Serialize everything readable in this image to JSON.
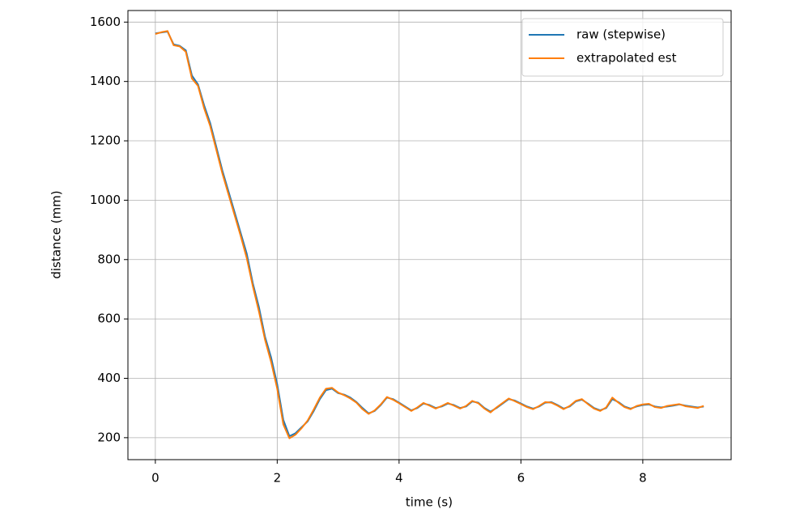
{
  "chart_data": {
    "type": "line",
    "xlabel": "time (s)",
    "ylabel": "distance (mm)",
    "x": [
      0,
      0.1,
      0.2,
      0.3,
      0.4,
      0.5,
      0.6,
      0.7,
      0.8,
      0.9,
      1.0,
      1.1,
      1.2,
      1.3,
      1.4,
      1.5,
      1.6,
      1.7,
      1.8,
      1.9,
      2.0,
      2.1,
      2.2,
      2.3,
      2.4,
      2.5,
      2.6,
      2.7,
      2.8,
      2.9,
      3.0,
      3.1,
      3.2,
      3.3,
      3.4,
      3.5,
      3.6,
      3.7,
      3.8,
      3.9,
      4.0,
      4.1,
      4.2,
      4.3,
      4.4,
      4.5,
      4.6,
      4.7,
      4.8,
      4.9,
      5.0,
      5.1,
      5.2,
      5.3,
      5.4,
      5.5,
      5.6,
      5.7,
      5.8,
      5.9,
      6.0,
      6.1,
      6.2,
      6.3,
      6.4,
      6.5,
      6.6,
      6.7,
      6.8,
      6.9,
      7.0,
      7.1,
      7.2,
      7.3,
      7.4,
      7.5,
      7.6,
      7.7,
      7.8,
      7.9,
      8.0,
      8.1,
      8.2,
      8.3,
      8.4,
      8.5,
      8.6,
      8.7,
      8.8,
      8.9,
      9.0
    ],
    "series": [
      {
        "name": "raw (stepwise)",
        "color": "#1f77b4",
        "values": [
          1562,
          1565,
          1568,
          1525,
          1520,
          1505,
          1420,
          1390,
          1320,
          1260,
          1180,
          1100,
          1030,
          960,
          890,
          820,
          720,
          640,
          540,
          470,
          380,
          260,
          205,
          215,
          235,
          255,
          290,
          330,
          360,
          365,
          350,
          345,
          335,
          320,
          300,
          282,
          290,
          310,
          335,
          330,
          318,
          305,
          292,
          300,
          315,
          310,
          300,
          305,
          315,
          310,
          300,
          305,
          322,
          318,
          300,
          288,
          300,
          315,
          330,
          325,
          315,
          305,
          298,
          305,
          318,
          320,
          310,
          298,
          305,
          322,
          328,
          315,
          300,
          292,
          300,
          330,
          320,
          305,
          298,
          305,
          310,
          312,
          305,
          302,
          305,
          308,
          312,
          308,
          305,
          302,
          305
        ]
      },
      {
        "name": "extrapolated est",
        "color": "#ff7f0e",
        "values": [
          1560,
          1566,
          1570,
          1522,
          1518,
          1500,
          1410,
          1385,
          1310,
          1250,
          1170,
          1090,
          1020,
          950,
          880,
          805,
          710,
          625,
          530,
          455,
          365,
          245,
          198,
          210,
          232,
          258,
          295,
          335,
          365,
          368,
          352,
          343,
          332,
          318,
          296,
          280,
          292,
          312,
          337,
          328,
          316,
          303,
          290,
          302,
          317,
          308,
          298,
          307,
          317,
          308,
          298,
          307,
          324,
          316,
          298,
          285,
          302,
          317,
          332,
          323,
          313,
          303,
          296,
          307,
          320,
          318,
          308,
          296,
          307,
          324,
          330,
          313,
          298,
          290,
          302,
          335,
          318,
          303,
          296,
          307,
          312,
          314,
          303,
          300,
          307,
          310,
          313,
          306,
          303,
          300,
          307
        ]
      }
    ],
    "xlim": [
      -0.45,
      9.45
    ],
    "xticks": [
      0,
      2,
      4,
      6,
      8
    ],
    "ylim": [
      126,
      1639
    ],
    "yticks": [
      200,
      400,
      600,
      800,
      1000,
      1200,
      1400,
      1600
    ],
    "grid": true,
    "legend": "upper right"
  }
}
